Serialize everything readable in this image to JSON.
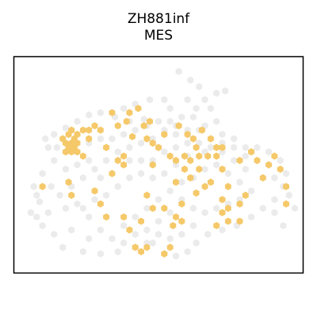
{
  "chart_data": {
    "type": "scatter",
    "title": "ZH881inf",
    "subtitle": "MES",
    "xlabel": "",
    "ylabel": "",
    "grid": false,
    "legend": "none",
    "axis_ticks": false,
    "xlim": [
      0,
      100
    ],
    "ylim": [
      0,
      100
    ],
    "colors": {
      "background_spot": "#ebebeb",
      "highlight_spot": "#f5c96a",
      "frame": "#000000"
    },
    "series": [
      {
        "role": "all spots",
        "points": [
          [
            57,
            93
          ],
          [
            61,
            89
          ],
          [
            64,
            86
          ],
          [
            66,
            80
          ],
          [
            68,
            76
          ],
          [
            63,
            76
          ],
          [
            70,
            83
          ],
          [
            73,
            84
          ],
          [
            60,
            80
          ],
          [
            58,
            72
          ],
          [
            54,
            76
          ],
          [
            52,
            80
          ],
          [
            47,
            80
          ],
          [
            42,
            78
          ],
          [
            38,
            76
          ],
          [
            45,
            71
          ],
          [
            40,
            70
          ],
          [
            35,
            72
          ],
          [
            30,
            74
          ],
          [
            26,
            73
          ],
          [
            22,
            70
          ],
          [
            18,
            67
          ],
          [
            14,
            64
          ],
          [
            12,
            58
          ],
          [
            14,
            52
          ],
          [
            10,
            46
          ],
          [
            7,
            40
          ],
          [
            9,
            33
          ],
          [
            6,
            28
          ],
          [
            10,
            22
          ],
          [
            14,
            18
          ],
          [
            17,
            12
          ],
          [
            24,
            10
          ],
          [
            30,
            9
          ],
          [
            36,
            10
          ],
          [
            42,
            12
          ],
          [
            48,
            14
          ],
          [
            52,
            9
          ],
          [
            56,
            8
          ],
          [
            60,
            10
          ],
          [
            63,
            14
          ],
          [
            67,
            18
          ],
          [
            72,
            20
          ],
          [
            77,
            22
          ],
          [
            82,
            26
          ],
          [
            86,
            30
          ],
          [
            90,
            34
          ],
          [
            93,
            40
          ],
          [
            94,
            46
          ],
          [
            92,
            52
          ],
          [
            88,
            56
          ],
          [
            84,
            58
          ],
          [
            80,
            58
          ],
          [
            76,
            62
          ],
          [
            72,
            64
          ],
          [
            68,
            62
          ],
          [
            64,
            66
          ],
          [
            60,
            66
          ],
          [
            56,
            64
          ],
          [
            52,
            66
          ],
          [
            48,
            62
          ],
          [
            44,
            60
          ],
          [
            40,
            58
          ],
          [
            36,
            56
          ],
          [
            32,
            52
          ],
          [
            28,
            48
          ],
          [
            24,
            44
          ],
          [
            20,
            40
          ],
          [
            22,
            32
          ],
          [
            26,
            26
          ],
          [
            30,
            20
          ],
          [
            34,
            16
          ],
          [
            38,
            22
          ],
          [
            42,
            26
          ],
          [
            46,
            30
          ],
          [
            50,
            34
          ],
          [
            54,
            38
          ],
          [
            58,
            42
          ],
          [
            62,
            44
          ],
          [
            66,
            48
          ],
          [
            70,
            50
          ],
          [
            74,
            46
          ],
          [
            78,
            42
          ],
          [
            82,
            38
          ],
          [
            86,
            44
          ],
          [
            88,
            50
          ],
          [
            84,
            52
          ],
          [
            80,
            48
          ],
          [
            76,
            52
          ],
          [
            72,
            56
          ],
          [
            66,
            56
          ],
          [
            60,
            54
          ],
          [
            56,
            50
          ],
          [
            52,
            46
          ],
          [
            48,
            44
          ],
          [
            44,
            46
          ],
          [
            40,
            44
          ],
          [
            36,
            40
          ],
          [
            32,
            36
          ],
          [
            28,
            34
          ],
          [
            24,
            30
          ],
          [
            18,
            30
          ],
          [
            16,
            36
          ],
          [
            18,
            48
          ],
          [
            22,
            56
          ],
          [
            26,
            60
          ],
          [
            30,
            62
          ],
          [
            34,
            62
          ],
          [
            38,
            64
          ],
          [
            42,
            66
          ],
          [
            46,
            68
          ],
          [
            50,
            70
          ],
          [
            54,
            70
          ],
          [
            40,
            52
          ],
          [
            44,
            52
          ],
          [
            48,
            52
          ],
          [
            52,
            56
          ],
          [
            56,
            58
          ],
          [
            60,
            60
          ],
          [
            64,
            60
          ],
          [
            68,
            58
          ],
          [
            72,
            60
          ],
          [
            76,
            58
          ],
          [
            80,
            54
          ],
          [
            58,
            34
          ],
          [
            62,
            30
          ],
          [
            66,
            28
          ],
          [
            70,
            30
          ],
          [
            74,
            32
          ],
          [
            78,
            34
          ],
          [
            54,
            28
          ],
          [
            50,
            24
          ],
          [
            46,
            20
          ],
          [
            42,
            18
          ],
          [
            38,
            14
          ],
          [
            62,
            22
          ],
          [
            58,
            18
          ],
          [
            54,
            16
          ],
          [
            50,
            18
          ],
          [
            46,
            14
          ],
          [
            30,
            44
          ],
          [
            34,
            46
          ],
          [
            26,
            52
          ],
          [
            22,
            50
          ],
          [
            15,
            58
          ],
          [
            11,
            62
          ],
          [
            8,
            36
          ],
          [
            13,
            40
          ],
          [
            12,
            28
          ],
          [
            8,
            26
          ],
          [
            20,
            20
          ],
          [
            26,
            16
          ],
          [
            66,
            68
          ],
          [
            70,
            70
          ],
          [
            62,
            72
          ],
          [
            56,
            68
          ],
          [
            90,
            44
          ],
          [
            95,
            36
          ],
          [
            97,
            30
          ],
          [
            90,
            28
          ],
          [
            93,
            22
          ]
        ]
      },
      {
        "name": "MES",
        "points": [
          [
            17,
            62
          ],
          [
            18,
            60
          ],
          [
            19,
            58
          ],
          [
            20,
            60
          ],
          [
            21,
            58
          ],
          [
            21,
            62
          ],
          [
            22,
            60
          ],
          [
            18,
            56
          ],
          [
            20,
            56
          ],
          [
            22,
            56
          ],
          [
            19,
            64
          ],
          [
            22,
            64
          ],
          [
            24,
            66
          ],
          [
            26,
            66
          ],
          [
            26,
            62
          ],
          [
            28,
            68
          ],
          [
            24,
            54
          ],
          [
            20,
            66
          ],
          [
            30,
            66
          ],
          [
            34,
            74
          ],
          [
            39,
            70
          ],
          [
            40,
            74
          ],
          [
            43,
            76
          ],
          [
            45,
            68
          ],
          [
            36,
            68
          ],
          [
            41,
            63
          ],
          [
            46,
            62
          ],
          [
            48,
            60
          ],
          [
            48,
            50
          ],
          [
            47,
            70
          ],
          [
            52,
            64
          ],
          [
            57,
            68
          ],
          [
            60,
            64
          ],
          [
            62,
            62
          ],
          [
            63,
            58
          ],
          [
            65,
            66
          ],
          [
            68,
            62
          ],
          [
            70,
            58
          ],
          [
            72,
            58
          ],
          [
            70,
            54
          ],
          [
            67,
            54
          ],
          [
            64,
            54
          ],
          [
            61,
            52
          ],
          [
            59,
            54
          ],
          [
            59,
            48
          ],
          [
            56,
            52
          ],
          [
            54,
            54
          ],
          [
            50,
            58
          ],
          [
            56,
            42
          ],
          [
            61,
            44
          ],
          [
            63,
            37
          ],
          [
            66,
            40
          ],
          [
            68,
            42
          ],
          [
            72,
            34
          ],
          [
            74,
            30
          ],
          [
            78,
            32
          ],
          [
            80,
            36
          ],
          [
            74,
            40
          ],
          [
            72,
            28
          ],
          [
            78,
            52
          ],
          [
            82,
            56
          ],
          [
            84,
            52
          ],
          [
            88,
            50
          ],
          [
            90,
            54
          ],
          [
            92,
            48
          ],
          [
            94,
            40
          ],
          [
            94,
            32
          ],
          [
            86,
            44
          ],
          [
            72,
            48
          ],
          [
            64,
            48
          ],
          [
            58,
            32
          ],
          [
            56,
            26
          ],
          [
            55,
            22
          ],
          [
            58,
            24
          ],
          [
            52,
            30
          ],
          [
            46,
            36
          ],
          [
            48,
            30
          ],
          [
            44,
            24
          ],
          [
            40,
            20
          ],
          [
            38,
            26
          ],
          [
            32,
            26
          ],
          [
            30,
            32
          ],
          [
            28,
            38
          ],
          [
            34,
            46
          ],
          [
            36,
            52
          ],
          [
            38,
            50
          ],
          [
            32,
            58
          ],
          [
            42,
            12
          ],
          [
            44,
            10
          ],
          [
            46,
            12
          ],
          [
            54,
            12
          ],
          [
            52,
            9
          ],
          [
            70,
            22
          ],
          [
            74,
            24
          ],
          [
            78,
            24
          ],
          [
            10,
            40
          ],
          [
            19,
            42
          ],
          [
            20,
            36
          ],
          [
            38,
            54
          ]
        ]
      }
    ]
  }
}
